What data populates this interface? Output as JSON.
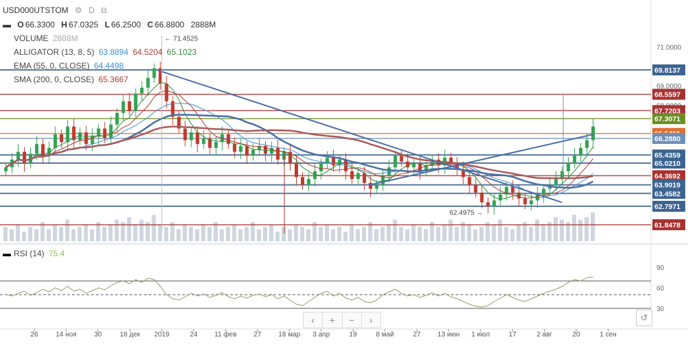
{
  "header": {
    "symbol": "USD000UTSTOM",
    "interval": "D",
    "ohlc": [
      {
        "k": "O",
        "v": "66.3300"
      },
      {
        "k": "H",
        "v": "67.0325"
      },
      {
        "k": "L",
        "v": "66.2500"
      },
      {
        "k": "C",
        "v": "66.8800"
      }
    ],
    "volume_short": "2888M"
  },
  "indicators": {
    "volume": {
      "name": "VOLUME",
      "value": "2888M"
    },
    "alligator": {
      "name": "ALLIGATOR (13, 8, 5)",
      "v1": "63.8894",
      "v2": "64.5204",
      "v3": "65.1023",
      "c1": "#3a8fd6",
      "c2": "#b03a2e",
      "c3": "#2e8b3a"
    },
    "ema": {
      "name": "EMA (55, 0, CLOSE)",
      "value": "64.4498",
      "color": "#3a8fd6"
    },
    "sma": {
      "name": "SMA (200, 0, CLOSE)",
      "value": "65.3667",
      "color": "#b03a2e"
    },
    "rsi": {
      "name": "RSI (14)",
      "value": "75.4",
      "color": "#8bc34a"
    }
  },
  "annotations": {
    "high_label": "71.4525",
    "low_label": "62.4975"
  },
  "chart_data": {
    "type": "candlestick",
    "price_axis": {
      "min": 61.0,
      "max": 72.0,
      "ticks": [
        "71.0000",
        "69.0000",
        "68.0000"
      ]
    },
    "price_labels": [
      {
        "value": 69.8137,
        "text": "69.8137",
        "color": "#3d6490"
      },
      {
        "value": 68.5597,
        "text": "68.5597",
        "color": "#a83232"
      },
      {
        "value": 67.7203,
        "text": "67.7203",
        "color": "#a83232"
      },
      {
        "value": 67.3071,
        "text": "67.3071",
        "color": "#6b8e23"
      },
      {
        "value": 66.5461,
        "text": "66.5461",
        "color": "#e07030"
      },
      {
        "value": 66.288,
        "text": "66.2880",
        "color": "#6f8fb6"
      },
      {
        "value": 65.4359,
        "text": "65.4359",
        "color": "#3d6490"
      },
      {
        "value": 65.021,
        "text": "65.0210",
        "color": "#3d6490"
      },
      {
        "value": 64.3692,
        "text": "64.3692",
        "color": "#a83232"
      },
      {
        "value": 63.9019,
        "text": "63.9019",
        "color": "#3d6490"
      },
      {
        "value": 63.4582,
        "text": "63.4582",
        "color": "#3d6490"
      },
      {
        "value": 62.7971,
        "text": "62.7971",
        "color": "#3d6490"
      },
      {
        "value": 61.8478,
        "text": "61.8478",
        "color": "#a83232"
      }
    ],
    "x_ticks": [
      "26",
      "14 ноя",
      "30",
      "18 дек",
      "2019",
      "24",
      "11 фев",
      "27",
      "18 мар",
      "3 апр",
      "19",
      "8 май",
      "27",
      "13 июн",
      "1 июл",
      "17",
      "2 авг",
      "20",
      "1 сен"
    ],
    "rsi_axis": {
      "ticks": [
        "90",
        "60",
        "30"
      ],
      "levels": [
        70,
        50,
        30
      ]
    },
    "close_path": [
      64.8,
      65.2,
      65.6,
      65.0,
      65.5,
      66.0,
      65.4,
      65.8,
      66.5,
      66.1,
      66.9,
      66.2,
      66.6,
      66.0,
      66.4,
      66.8,
      66.3,
      67.0,
      67.6,
      68.2,
      67.7,
      68.6,
      68.9,
      69.4,
      69.9,
      69.1,
      68.2,
      67.4,
      66.8,
      66.2,
      66.6,
      66.0,
      66.3,
      65.8,
      66.1,
      66.5,
      66.0,
      65.6,
      65.9,
      65.4,
      65.7,
      65.9,
      65.5,
      65.8,
      65.2,
      65.6,
      65.0,
      64.3,
      63.9,
      64.2,
      64.6,
      65.0,
      65.3,
      64.9,
      65.2,
      64.6,
      64.2,
      64.5,
      64.0,
      63.7,
      63.9,
      64.4,
      64.8,
      65.4,
      65.1,
      64.8,
      65.0,
      64.6,
      64.9,
      65.2,
      64.9,
      65.3,
      65.0,
      64.7,
      64.3,
      63.9,
      63.5,
      63.0,
      62.8,
      63.1,
      63.4,
      63.8,
      63.5,
      63.2,
      62.9,
      63.1,
      63.4,
      63.7,
      63.9,
      64.2,
      64.6,
      65.0,
      65.4,
      65.8,
      66.2,
      66.9
    ],
    "volume": [
      6,
      5,
      7,
      4,
      6,
      5,
      8,
      5,
      7,
      6,
      9,
      5,
      6,
      7,
      5,
      8,
      6,
      7,
      9,
      8,
      10,
      7,
      9,
      8,
      11,
      7,
      6,
      8,
      5,
      7,
      6,
      5,
      7,
      6,
      8,
      5,
      6,
      7,
      5,
      6,
      8,
      5,
      6,
      7,
      4,
      6,
      5,
      7,
      6,
      5,
      8,
      6,
      7,
      5,
      6,
      4,
      7,
      5,
      6,
      8,
      5,
      6,
      7,
      9,
      6,
      5,
      7,
      6,
      5,
      8,
      6,
      7,
      9,
      6,
      8,
      7,
      5,
      6,
      8,
      7,
      9,
      6,
      5,
      7,
      8,
      6,
      9,
      7,
      8,
      10,
      9,
      8,
      11,
      9,
      10,
      12
    ],
    "rsi": [
      50,
      48,
      52,
      55,
      49,
      53,
      58,
      54,
      60,
      56,
      62,
      55,
      58,
      52,
      56,
      60,
      57,
      63,
      68,
      70,
      66,
      72,
      68,
      74,
      72,
      62,
      50,
      44,
      42,
      47,
      52,
      48,
      51,
      46,
      49,
      53,
      47,
      44,
      48,
      45,
      49,
      51,
      47,
      50,
      44,
      48,
      42,
      36,
      34,
      40,
      46,
      52,
      55,
      48,
      52,
      45,
      42,
      46,
      40,
      38,
      42,
      50,
      54,
      58,
      52,
      48,
      50,
      46,
      49,
      53,
      48,
      52,
      47,
      44,
      40,
      36,
      33,
      32,
      34,
      40,
      45,
      50,
      46,
      42,
      40,
      44,
      48,
      52,
      55,
      58,
      62,
      68,
      72,
      70,
      75,
      75.4
    ]
  }
}
